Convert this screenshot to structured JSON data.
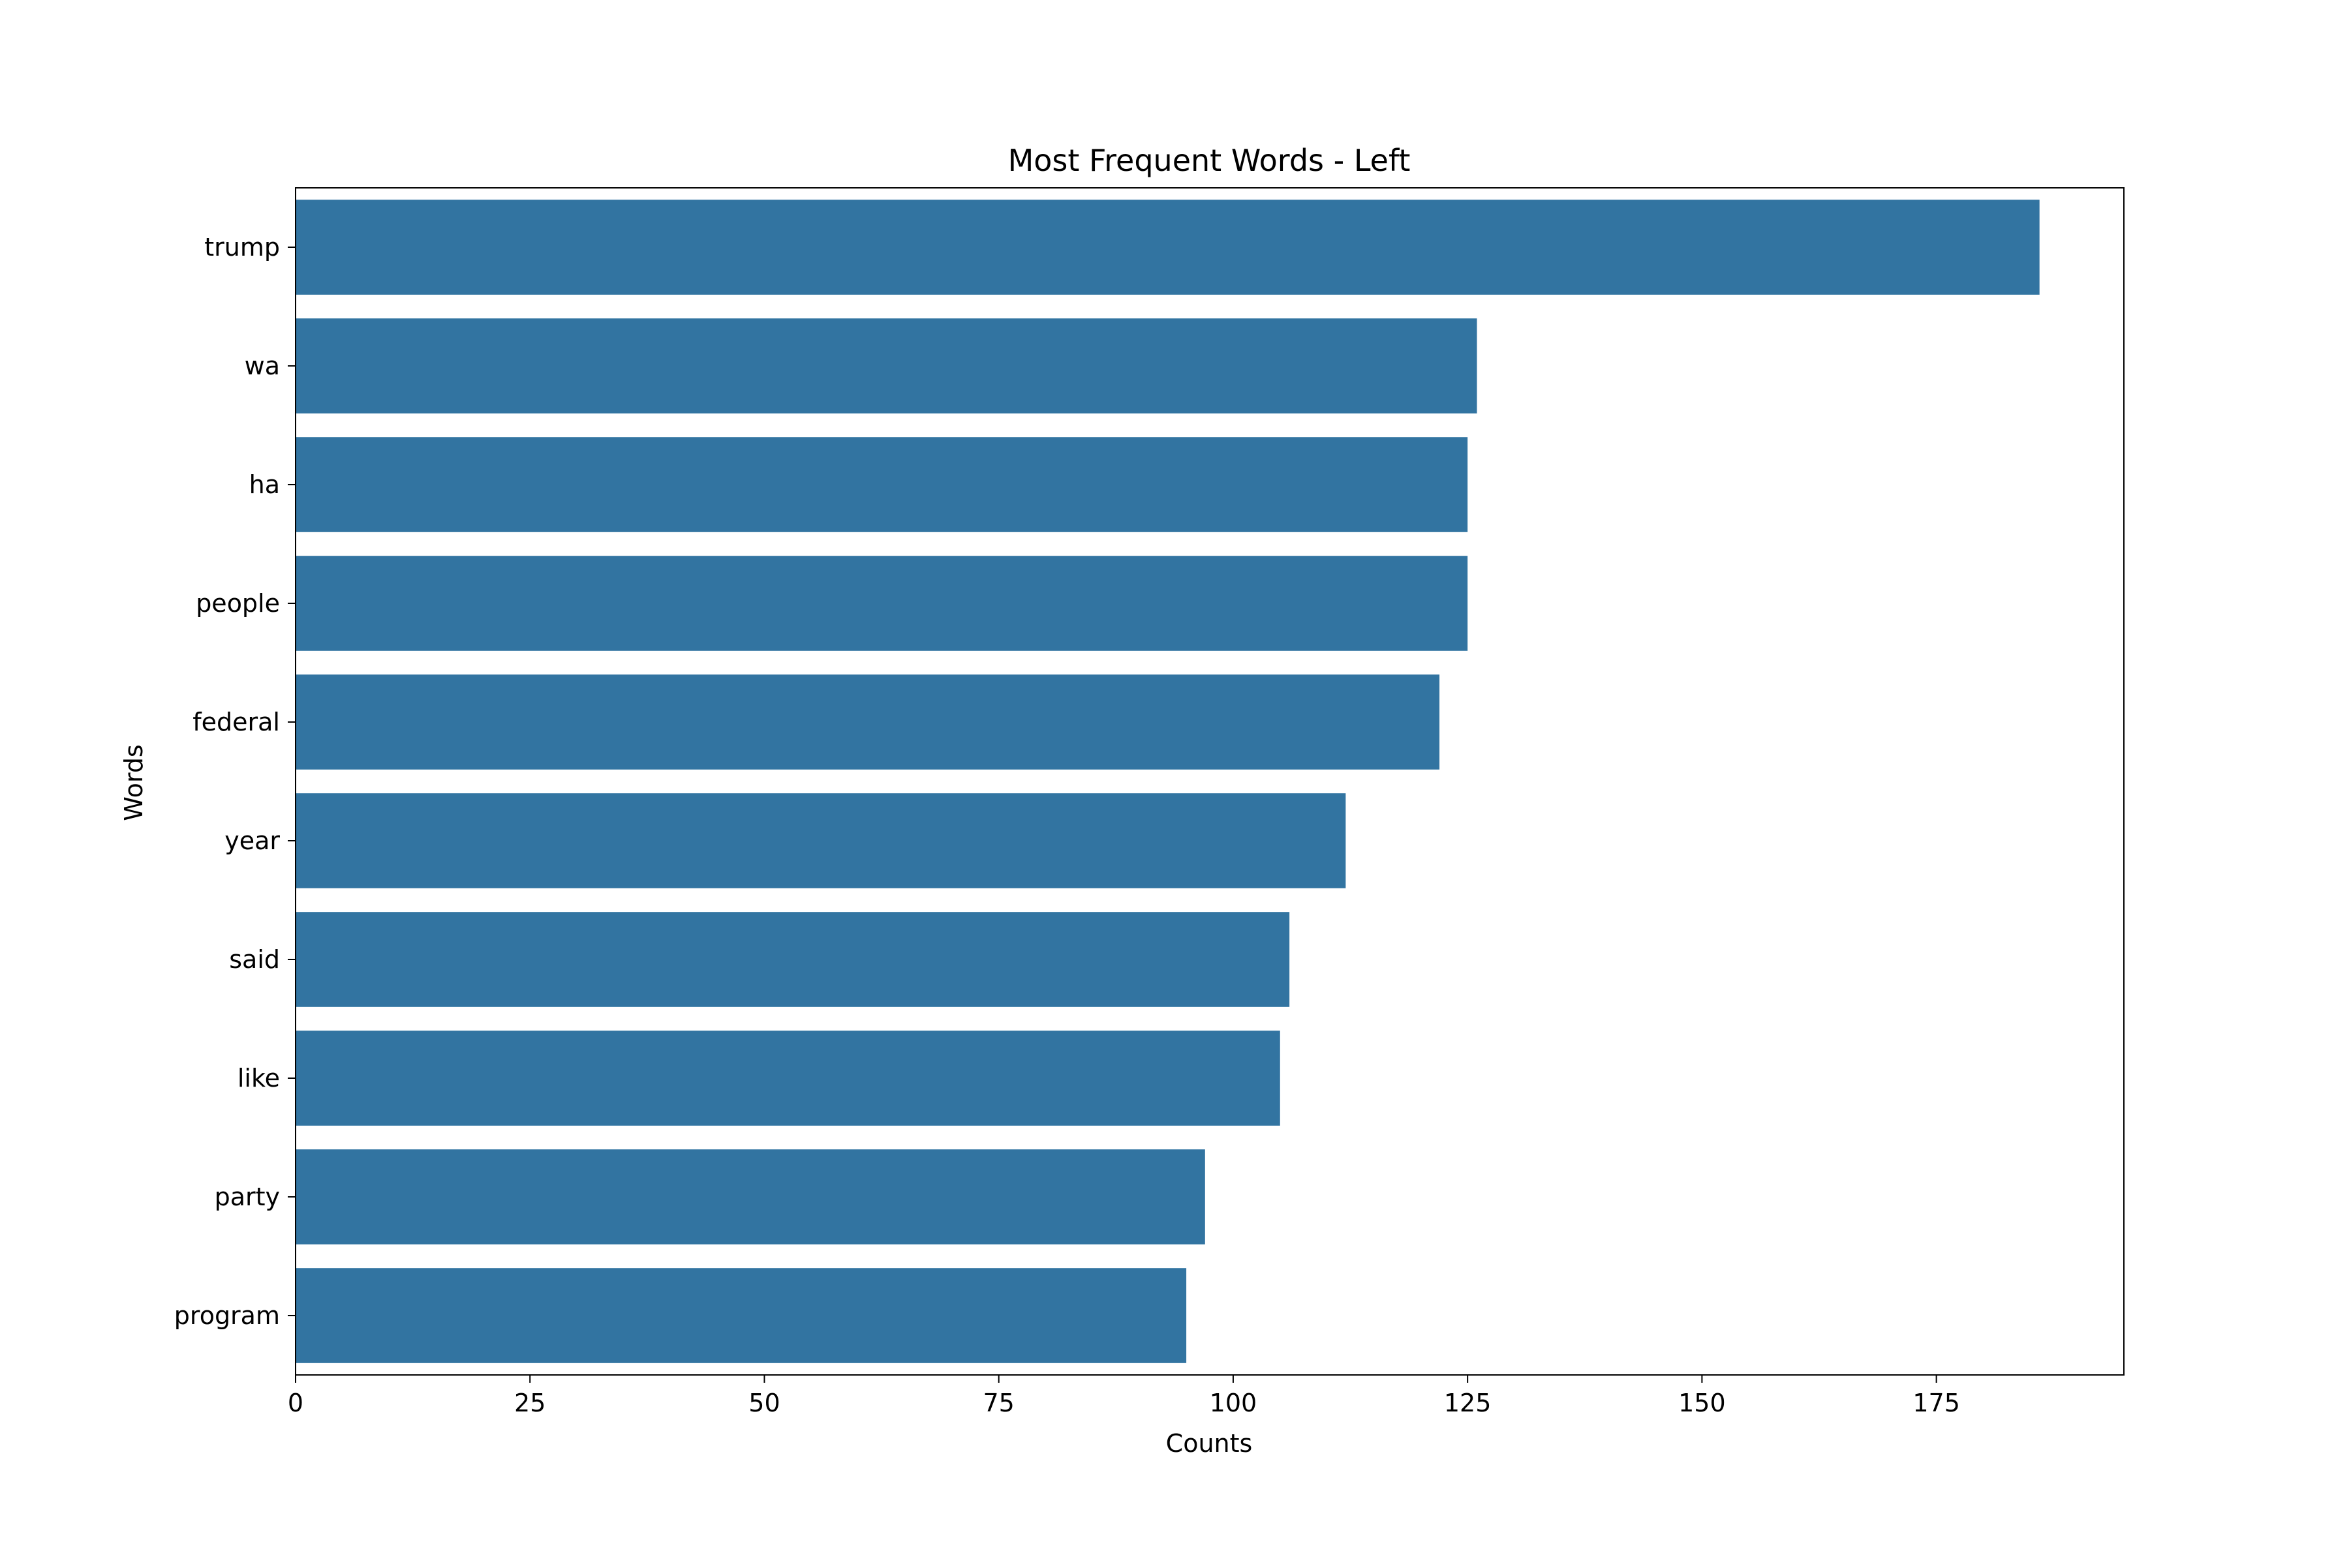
{
  "chart_data": {
    "type": "bar",
    "orientation": "horizontal",
    "title": "Most Frequent Words - Left",
    "xlabel": "Counts",
    "ylabel": "Words",
    "categories": [
      "trump",
      "wa",
      "ha",
      "people",
      "federal",
      "year",
      "said",
      "like",
      "party",
      "program"
    ],
    "values": [
      186,
      126,
      125,
      125,
      122,
      112,
      106,
      105,
      97,
      95
    ],
    "xlim": [
      0,
      195
    ],
    "xticks": [
      0,
      25,
      50,
      75,
      100,
      125,
      150,
      175
    ],
    "grid": false,
    "legend": "none",
    "bar_color": "#3274a1"
  }
}
